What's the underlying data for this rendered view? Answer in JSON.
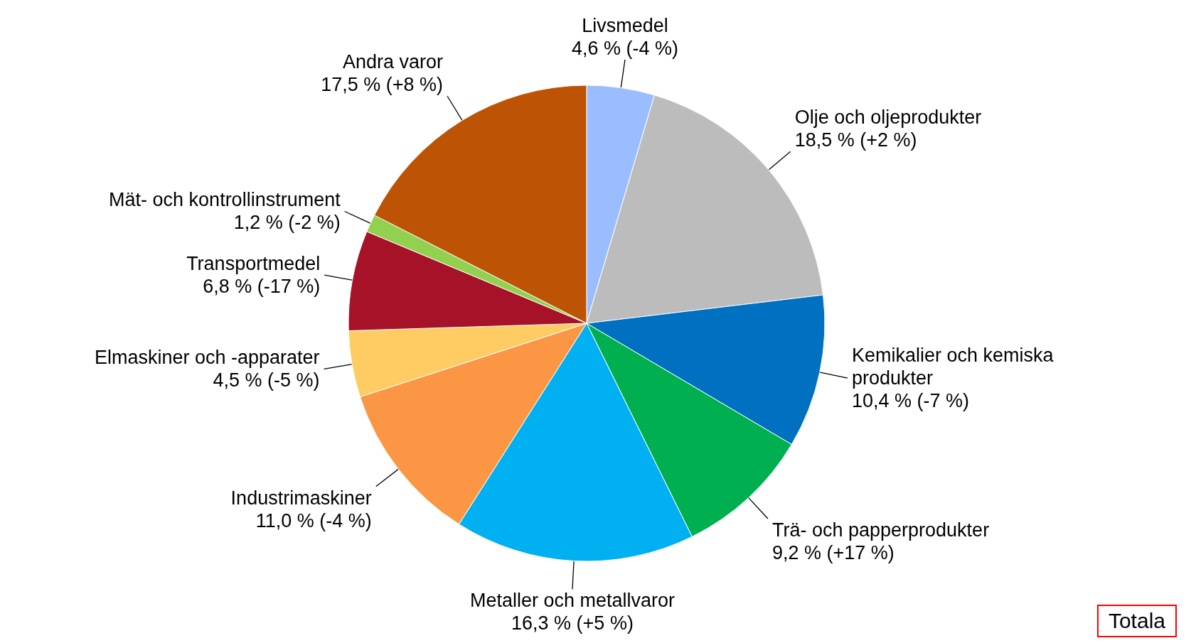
{
  "chart_data": {
    "type": "pie",
    "categories": [
      "Livsmedel",
      "Olje och oljeprodukter",
      "Kemikalier och kemiska produkter",
      "Trä- och papperprodukter",
      "Metaller och metallvaror",
      "Industrimaskiner",
      "Elmaskiner och -apparater",
      "Transportmedel",
      "Mät- och kontrollinstrument",
      "Andra varor"
    ],
    "values": [
      4.6,
      18.5,
      10.4,
      9.2,
      16.3,
      11.0,
      4.5,
      6.8,
      1.2,
      17.5
    ],
    "value_labels": [
      "4,6 % (-4 %)",
      "18,5 % (+2 %)",
      "10,4 % (-7 %)",
      "9,2 % (+17 %)",
      "16,3 % (+5 %)",
      "11,0 % (-4 %)",
      "4,5 % (-5 %)",
      "6,8 % (-17 %)",
      "1,2 % (-2 %)",
      "17,5 % (+8 %)"
    ],
    "colors": [
      "#99bdff",
      "#bbbcbb",
      "#0070c0",
      "#00b050",
      "#00b0f0",
      "#fb9744",
      "#fecc62",
      "#a61328",
      "#92d050",
      "#bd5304"
    ],
    "annotations": [
      "Totala"
    ]
  }
}
